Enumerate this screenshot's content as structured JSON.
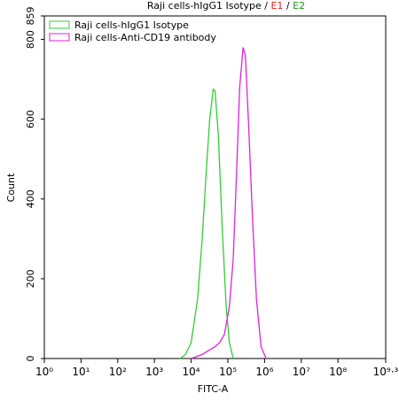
{
  "chart_data": {
    "type": "line",
    "title_segments": [
      {
        "text": "Raji cells-hIgG1 Isotype / ",
        "color": "#000000"
      },
      {
        "text": "E1",
        "color": "#e0201c"
      },
      {
        "text": " / ",
        "color": "#000000"
      },
      {
        "text": "E2",
        "color": "#1a9a1a"
      }
    ],
    "x_label": "FITC-A",
    "y_label": "Count",
    "log_x": true,
    "xlim": [
      1,
      1995262315
    ],
    "xticks": [
      {
        "value": 1,
        "label": "10⁰"
      },
      {
        "value": 10,
        "label": "10¹"
      },
      {
        "value": 100,
        "label": "10²"
      },
      {
        "value": 1000,
        "label": "10³"
      },
      {
        "value": 10000,
        "label": "10⁴"
      },
      {
        "value": 100000,
        "label": "10⁵"
      },
      {
        "value": 1000000,
        "label": "10⁶"
      },
      {
        "value": 10000000,
        "label": "10⁷"
      },
      {
        "value": 100000000,
        "label": "10⁸"
      },
      {
        "value": 1995262315,
        "label": "10⁹·³"
      }
    ],
    "ylim": [
      0,
      859
    ],
    "yticks": [
      0,
      200,
      400,
      600,
      800,
      859
    ],
    "legend": "upper-left",
    "series": [
      {
        "name": "Raji cells-hIgG1 Isotype",
        "color": "#33cc33",
        "x": [
          5000,
          7000,
          10000,
          15000,
          20000,
          25000,
          32000,
          40000,
          45000,
          55000,
          70000,
          90000,
          110000,
          140000
        ],
        "values": [
          0,
          10,
          40,
          150,
          300,
          450,
          600,
          675,
          670,
          560,
          330,
          130,
          40,
          0
        ]
      },
      {
        "name": "Raji cells-Anti-CD19 antibody",
        "color": "#dd22dd",
        "x": [
          10000,
          20000,
          30000,
          45000,
          60000,
          80000,
          110000,
          140000,
          170000,
          210000,
          260000,
          300000,
          370000,
          470000,
          600000,
          800000,
          1100000
        ],
        "values": [
          0,
          10,
          20,
          30,
          40,
          60,
          130,
          250,
          450,
          680,
          780,
          760,
          580,
          350,
          150,
          30,
          0
        ]
      }
    ]
  }
}
